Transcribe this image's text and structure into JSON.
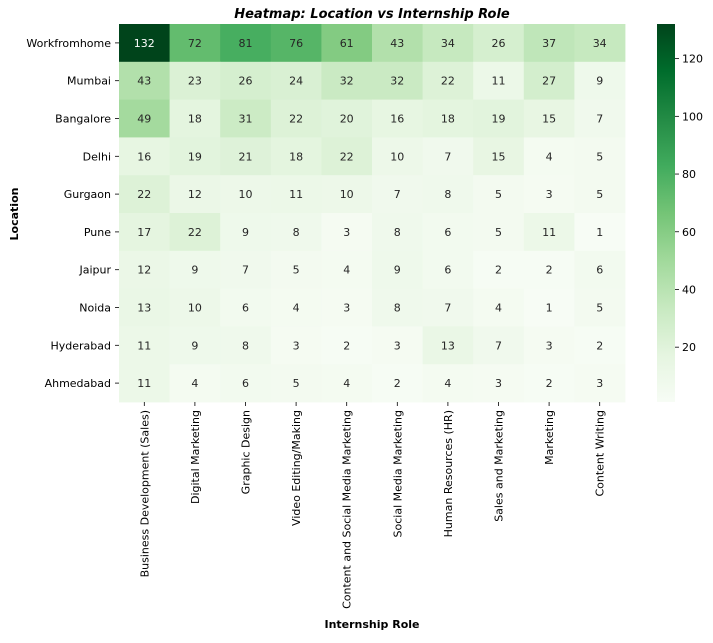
{
  "chart_data": {
    "type": "heatmap",
    "title": "Heatmap: Location vs Internship Role",
    "xlabel": "Internship Role",
    "ylabel": "Location",
    "x_categories": [
      "Business Development (Sales)",
      "Digital Marketing",
      "Graphic Design",
      "Video Editing/Making",
      "Content and Social Media Marketing",
      "Social Media Marketing",
      "Human Resources (HR)",
      "Sales and Marketing",
      "Marketing",
      "Content Writing"
    ],
    "y_categories": [
      "Workfromhome",
      "Mumbai",
      "Bangalore",
      "Delhi",
      "Gurgaon",
      "Pune",
      "Jaipur",
      "Noida",
      "Hyderabad",
      "Ahmedabad"
    ],
    "values": [
      [
        132,
        72,
        81,
        76,
        61,
        43,
        34,
        26,
        37,
        34
      ],
      [
        43,
        23,
        26,
        24,
        32,
        32,
        22,
        11,
        27,
        9
      ],
      [
        49,
        18,
        31,
        22,
        20,
        16,
        18,
        19,
        15,
        7
      ],
      [
        16,
        19,
        21,
        18,
        22,
        10,
        7,
        15,
        4,
        5
      ],
      [
        22,
        12,
        10,
        11,
        10,
        7,
        8,
        5,
        3,
        5
      ],
      [
        17,
        22,
        9,
        8,
        3,
        8,
        6,
        5,
        11,
        1
      ],
      [
        12,
        9,
        7,
        5,
        4,
        9,
        6,
        2,
        2,
        6
      ],
      [
        13,
        10,
        6,
        4,
        3,
        8,
        7,
        4,
        1,
        5
      ],
      [
        11,
        9,
        8,
        3,
        2,
        3,
        13,
        7,
        3,
        2
      ],
      [
        11,
        4,
        6,
        5,
        4,
        2,
        4,
        3,
        2,
        3
      ]
    ],
    "colorbar": {
      "ticks": [
        20,
        40,
        60,
        80,
        100,
        120
      ],
      "range": [
        1,
        132
      ],
      "colormap": "Greens"
    },
    "annotations_shown": true
  }
}
